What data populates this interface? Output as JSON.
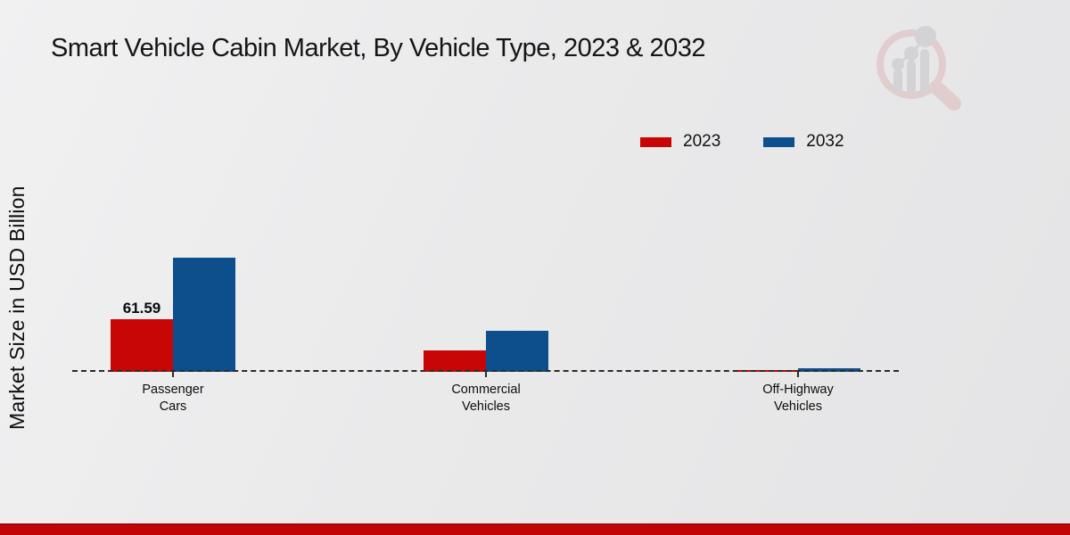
{
  "page": {
    "title": "Smart Vehicle Cabin Market, By Vehicle Type, 2023 & 2032",
    "ylabel": "Market Size in USD Billion"
  },
  "colors": {
    "series_2023": "#c80606",
    "series_2032": "#0d4f8c",
    "bottom_strip": "#c20404",
    "background": "#e9e9ea"
  },
  "watermark": {
    "name": "market-research-future-logo"
  },
  "chart_data": {
    "type": "bar",
    "title": "Smart Vehicle Cabin Market, By Vehicle Type, 2023 & 2032",
    "xlabel": "",
    "ylabel": "Market Size in USD Billion",
    "categories": [
      "Passenger Cars",
      "Commercial Vehicles",
      "Off-Highway Vehicles"
    ],
    "category_display_lines": [
      [
        "Passenger",
        "Cars"
      ],
      [
        "Commercial",
        "Vehicles"
      ],
      [
        "Off-Highway",
        "Vehicles"
      ]
    ],
    "series": [
      {
        "name": "2023",
        "color": "#c80606",
        "values": [
          61.59,
          25.5,
          1.9
        ]
      },
      {
        "name": "2032",
        "color": "#0d4f8c",
        "values": [
          133.5,
          48.0,
          4.6
        ]
      }
    ],
    "value_labels": [
      {
        "series_index": 0,
        "category_index": 0,
        "text": "61.59"
      }
    ],
    "ylim": [
      0,
      140
    ],
    "grid": false,
    "legend_position": "top-right",
    "note": "only the 2023 Passenger Cars bar is labeled; other values estimated from bar heights"
  }
}
